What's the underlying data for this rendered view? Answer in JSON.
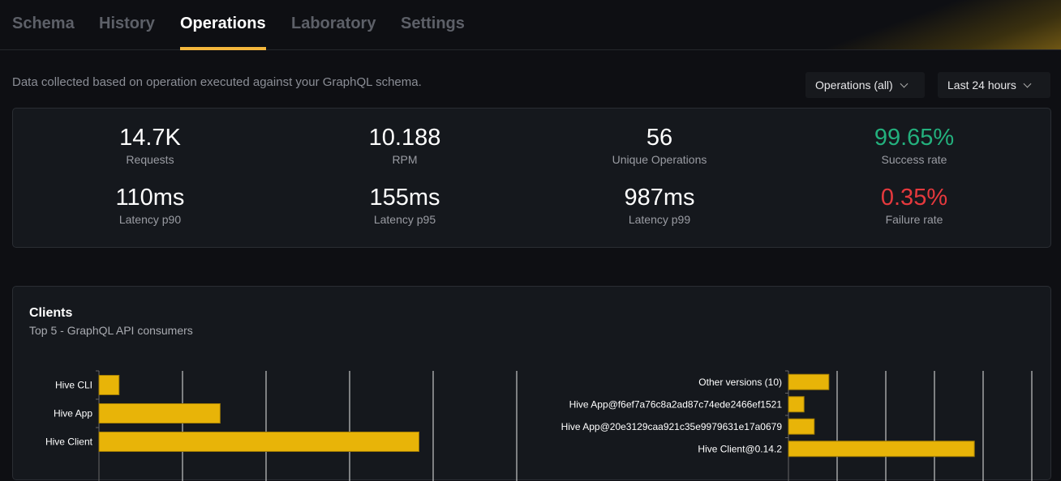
{
  "tabs": [
    {
      "label": "Schema"
    },
    {
      "label": "History"
    },
    {
      "label": "Operations",
      "active": true
    },
    {
      "label": "Laboratory"
    },
    {
      "label": "Settings"
    }
  ],
  "description": "Data collected based on operation executed against your GraphQL schema.",
  "filters": {
    "operations": "Operations (all)",
    "period": "Last 24 hours"
  },
  "stats": [
    {
      "value": "14.7K",
      "label": "Requests"
    },
    {
      "value": "10.188",
      "label": "RPM"
    },
    {
      "value": "56",
      "label": "Unique Operations"
    },
    {
      "value": "99.65%",
      "label": "Success rate",
      "color": "#23b07d"
    },
    {
      "value": "110ms",
      "label": "Latency p90"
    },
    {
      "value": "155ms",
      "label": "Latency p95"
    },
    {
      "value": "987ms",
      "label": "Latency p99"
    },
    {
      "value": "0.35%",
      "label": "Failure rate",
      "color": "#e5393d"
    }
  ],
  "clients": {
    "title": "Clients",
    "subtitle": "Top 5 - GraphQL API consumers"
  },
  "colors": {
    "accent": "#f4b73c",
    "bar": "#e8b408"
  },
  "chart_data": [
    {
      "type": "bar",
      "orientation": "horizontal",
      "categories": [
        "Hive CLI",
        "Hive App",
        "Hive Client"
      ],
      "values": [
        0.24,
        1.45,
        3.83
      ],
      "grid": true
    },
    {
      "type": "bar",
      "orientation": "horizontal",
      "categories": [
        "Other versions (10)",
        "Hive App@f6ef7a76c8a2ad87c74ede2466ef1521",
        "Hive App@20e3129caa921c35e9979631e17a0679",
        "Hive Client@0.14.2"
      ],
      "values": [
        0.83,
        0.32,
        0.53,
        3.82
      ],
      "grid": true
    }
  ]
}
